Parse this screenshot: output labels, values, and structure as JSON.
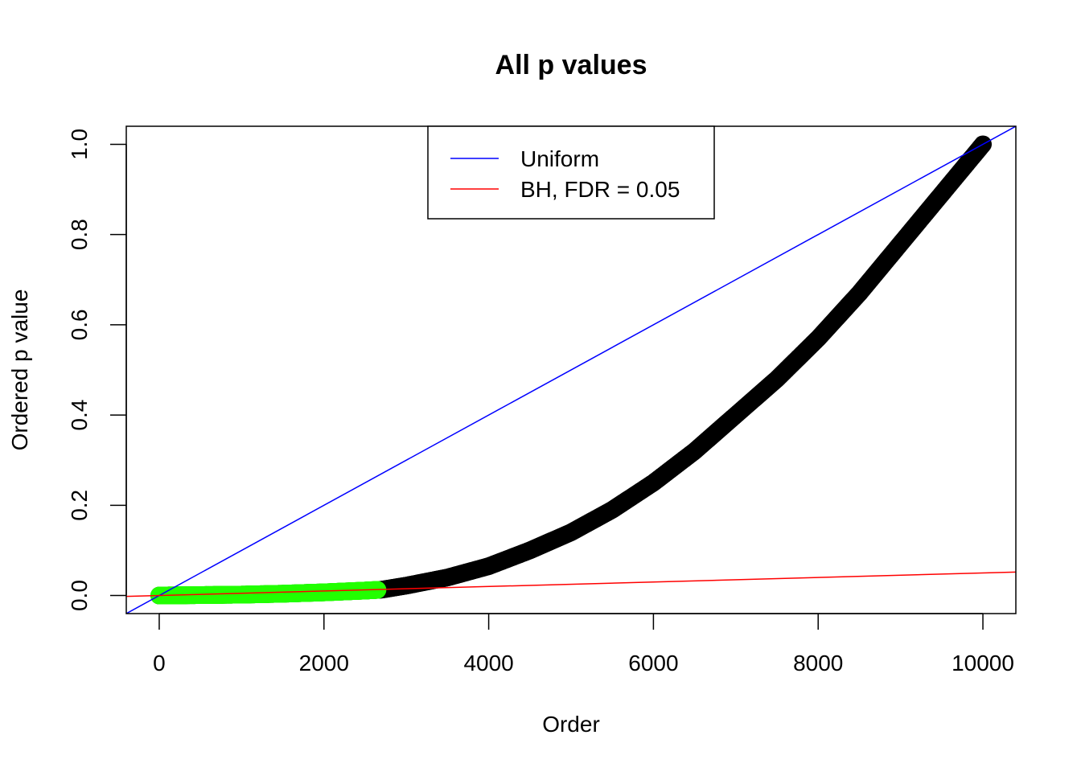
{
  "chart_data": {
    "type": "scatter",
    "title": "All p values",
    "xlabel": "Order",
    "ylabel": "Ordered p value",
    "xlim": [
      -400,
      10400
    ],
    "ylim": [
      -0.04,
      1.04
    ],
    "x_ticks": [
      0,
      2000,
      4000,
      6000,
      8000,
      10000
    ],
    "x_tick_labels": [
      "0",
      "2000",
      "4000",
      "6000",
      "8000",
      "10000"
    ],
    "y_ticks": [
      0.0,
      0.2,
      0.4,
      0.6,
      0.8,
      1.0
    ],
    "y_tick_labels": [
      "0.0",
      "0.2",
      "0.4",
      "0.6",
      "0.8",
      "1.0"
    ],
    "grid": false,
    "legend_position": "top-center",
    "series": [
      {
        "name": "",
        "kind": "points",
        "color": "#000000",
        "x": [
          0,
          500,
          1000,
          1500,
          2000,
          2500,
          2700,
          3000,
          3500,
          4000,
          4500,
          5000,
          5500,
          6000,
          6500,
          7000,
          7500,
          8000,
          8500,
          9000,
          9500,
          10000
        ],
        "y": [
          0.0,
          0.001,
          0.002,
          0.004,
          0.007,
          0.011,
          0.013,
          0.022,
          0.04,
          0.065,
          0.1,
          0.14,
          0.19,
          0.25,
          0.32,
          0.4,
          0.48,
          0.57,
          0.67,
          0.78,
          0.89,
          1.0
        ]
      },
      {
        "name": "",
        "kind": "points",
        "color": "#22ff00",
        "x": [
          0,
          250,
          500,
          750,
          1000,
          1250,
          1500,
          1750,
          2000,
          2250,
          2500,
          2650
        ],
        "y": [
          0.0,
          0.0005,
          0.001,
          0.0015,
          0.002,
          0.003,
          0.004,
          0.0055,
          0.007,
          0.009,
          0.011,
          0.0125
        ]
      },
      {
        "name": "Uniform",
        "kind": "abline",
        "color": "#0000ff",
        "intercept": 0,
        "slope": 0.0001
      },
      {
        "name": "BH, FDR = 0.05",
        "kind": "abline",
        "color": "#ff0000",
        "intercept": 0,
        "slope": 5e-06
      }
    ]
  }
}
